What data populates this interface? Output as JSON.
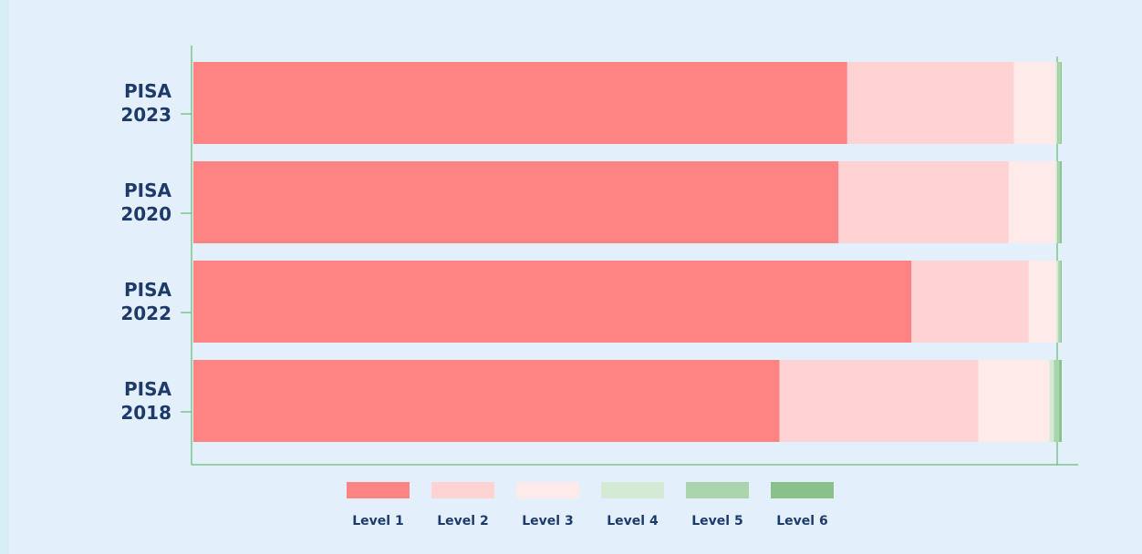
{
  "chart_data": {
    "type": "stacked-bar-horizontal",
    "categories": [
      "PISA 2023",
      "PISA 2020",
      "PISA 2022",
      "PISA 2018"
    ],
    "xlim": [
      0,
      100
    ],
    "series": [
      {
        "name": "Level 1",
        "color": "#ff8383",
        "values": [
          75.3,
          74.3,
          82.7,
          67.5
        ]
      },
      {
        "name": "Level 2",
        "color": "#ffd3d3",
        "values": [
          19.2,
          19.6,
          13.5,
          22.9
        ]
      },
      {
        "name": "Level 3",
        "color": "#ffeaea",
        "values": [
          4.8,
          5.4,
          3.2,
          8.2
        ]
      },
      {
        "name": "Level 4",
        "color": "#d4ead5",
        "values": [
          0.2,
          0.2,
          0.2,
          0.5
        ]
      },
      {
        "name": "Level 5",
        "color": "#aad4ab",
        "values": [
          0.4,
          0.3,
          0.3,
          0.6
        ]
      },
      {
        "name": "Level 6",
        "color": "#88c189",
        "values": [
          0.1,
          0.2,
          0.1,
          0.3
        ]
      }
    ]
  }
}
